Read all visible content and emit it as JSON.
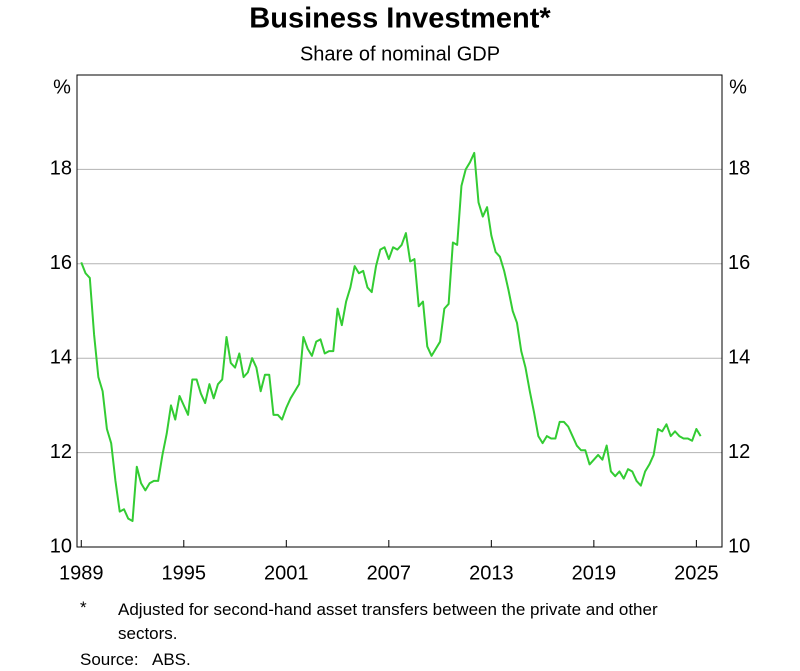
{
  "chart_data": {
    "type": "line",
    "title": "Business Investment*",
    "subtitle": "Share of nominal GDP",
    "ylabel": "%",
    "footnote_marker": "*",
    "footnote": "Adjusted for second-hand asset transfers between the private and other sectors.",
    "source_label": "Source:",
    "source": "ABS.",
    "xlim": [
      1988.75,
      2026.5
    ],
    "xticks": [
      1989,
      1995,
      2001,
      2007,
      2013,
      2019,
      2025
    ],
    "ylim": [
      10,
      20
    ],
    "yticks": [
      10,
      12,
      14,
      16,
      18
    ],
    "grid": true,
    "x": [
      1989,
      1989.25,
      1989.5,
      1989.75,
      1990,
      1990.25,
      1990.5,
      1990.75,
      1991,
      1991.25,
      1991.5,
      1991.75,
      1992,
      1992.25,
      1992.5,
      1992.75,
      1993,
      1993.25,
      1993.5,
      1993.75,
      1994,
      1994.25,
      1994.5,
      1994.75,
      1995,
      1995.25,
      1995.5,
      1995.75,
      1996,
      1996.25,
      1996.5,
      1996.75,
      1997,
      1997.25,
      1997.5,
      1997.75,
      1998,
      1998.25,
      1998.5,
      1998.75,
      1999,
      1999.25,
      1999.5,
      1999.75,
      2000,
      2000.25,
      2000.5,
      2000.75,
      2001,
      2001.25,
      2001.5,
      2001.75,
      2002,
      2002.25,
      2002.5,
      2002.75,
      2003,
      2003.25,
      2003.5,
      2003.75,
      2004,
      2004.25,
      2004.5,
      2004.75,
      2005,
      2005.25,
      2005.5,
      2005.75,
      2006,
      2006.25,
      2006.5,
      2006.75,
      2007,
      2007.25,
      2007.5,
      2007.75,
      2008,
      2008.25,
      2008.5,
      2008.75,
      2009,
      2009.25,
      2009.5,
      2009.75,
      2010,
      2010.25,
      2010.5,
      2010.75,
      2011,
      2011.25,
      2011.5,
      2011.75,
      2012,
      2012.25,
      2012.5,
      2012.75,
      2013,
      2013.25,
      2013.5,
      2013.75,
      2014,
      2014.25,
      2014.5,
      2014.75,
      2015,
      2015.25,
      2015.5,
      2015.75,
      2016,
      2016.25,
      2016.5,
      2016.75,
      2017,
      2017.25,
      2017.5,
      2017.75,
      2018,
      2018.25,
      2018.5,
      2018.75,
      2019,
      2019.25,
      2019.5,
      2019.75,
      2020,
      2020.25,
      2020.5,
      2020.75,
      2021,
      2021.25,
      2021.5,
      2021.75,
      2022,
      2022.25,
      2022.5,
      2022.75,
      2023,
      2023.25,
      2023.5,
      2023.75,
      2024,
      2024.25,
      2024.5,
      2024.75,
      2025,
      2025.25
    ],
    "series": [
      {
        "color": "#33cc33",
        "values": [
          16.03,
          15.8,
          15.7,
          14.5,
          13.6,
          13.3,
          12.5,
          12.2,
          11.4,
          10.75,
          10.8,
          10.6,
          10.55,
          11.7,
          11.35,
          11.2,
          11.35,
          11.4,
          11.4,
          11.95,
          12.4,
          13.0,
          12.7,
          13.2,
          13.0,
          12.8,
          13.55,
          13.55,
          13.25,
          13.05,
          13.45,
          13.15,
          13.45,
          13.55,
          14.45,
          13.9,
          13.8,
          14.1,
          13.6,
          13.7,
          14.0,
          13.8,
          13.3,
          13.65,
          13.65,
          12.8,
          12.8,
          12.7,
          12.95,
          13.15,
          13.3,
          13.45,
          14.45,
          14.2,
          14.05,
          14.35,
          14.4,
          14.1,
          14.15,
          14.15,
          15.05,
          14.7,
          15.2,
          15.5,
          15.95,
          15.8,
          15.85,
          15.5,
          15.4,
          15.95,
          16.3,
          16.35,
          16.1,
          16.35,
          16.3,
          16.4,
          16.65,
          16.05,
          16.1,
          15.1,
          15.2,
          14.25,
          14.05,
          14.2,
          14.35,
          15.05,
          15.15,
          16.45,
          16.4,
          17.65,
          18.0,
          18.15,
          18.35,
          17.3,
          17.0,
          17.2,
          16.6,
          16.25,
          16.15,
          15.85,
          15.45,
          15.0,
          14.75,
          14.15,
          13.8,
          13.3,
          12.85,
          12.35,
          12.2,
          12.35,
          12.3,
          12.3,
          12.65,
          12.65,
          12.55,
          12.35,
          12.15,
          12.05,
          12.05,
          11.75,
          11.85,
          11.95,
          11.85,
          12.15,
          11.6,
          11.5,
          11.6,
          11.45,
          11.65,
          11.6,
          11.4,
          11.3,
          11.6,
          11.75,
          11.95,
          12.5,
          12.45,
          12.6,
          12.35,
          12.45,
          12.35,
          12.3,
          12.3,
          12.25,
          12.5,
          12.35
        ]
      }
    ]
  }
}
